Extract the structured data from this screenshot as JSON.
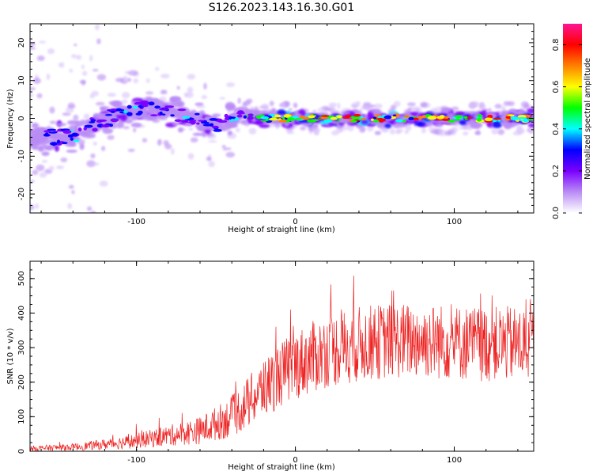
{
  "title": "S126.2023.143.16.30.G01",
  "chart_data": [
    {
      "type": "heatmap",
      "xlabel": "Height of straight line (km)",
      "ylabel": "Frequency (Hz)",
      "xlim": [
        -167,
        150
      ],
      "ylim": [
        -25,
        25
      ],
      "xticks": [
        -100,
        0,
        100
      ],
      "yticks": [
        -20,
        -10,
        0,
        10,
        20
      ],
      "colorbar": {
        "label": "Normalized spectral amplitude",
        "range": [
          0.0,
          0.9
        ],
        "ticks": [
          0.0,
          0.2,
          0.4,
          0.6,
          0.8
        ],
        "colormap": [
          "#ffffff",
          "#b98cf5",
          "#7a00ff",
          "#0000ff",
          "#00ffff",
          "#00ff00",
          "#ffff00",
          "#ff8000",
          "#ff0000",
          "#ff1493"
        ]
      },
      "ridge": [
        {
          "x": -160,
          "freq": -5,
          "amp": 0.3
        },
        {
          "x": -140,
          "freq": -5,
          "amp": 0.4
        },
        {
          "x": -125,
          "freq": -1,
          "amp": 0.35
        },
        {
          "x": -110,
          "freq": 1,
          "amp": 0.45
        },
        {
          "x": -95,
          "freq": 3,
          "amp": 0.45
        },
        {
          "x": -80,
          "freq": 2,
          "amp": 0.4
        },
        {
          "x": -65,
          "freq": 0,
          "amp": 0.35
        },
        {
          "x": -50,
          "freq": -2,
          "amp": 0.35
        },
        {
          "x": -35,
          "freq": 1,
          "amp": 0.4
        },
        {
          "x": -20,
          "freq": 0,
          "amp": 0.6
        },
        {
          "x": 0,
          "freq": 0,
          "amp": 0.75
        },
        {
          "x": 25,
          "freq": 0,
          "amp": 0.85
        },
        {
          "x": 50,
          "freq": 0,
          "amp": 0.8
        },
        {
          "x": 75,
          "freq": 0,
          "amp": 0.8
        },
        {
          "x": 100,
          "freq": 0,
          "amp": 0.8
        },
        {
          "x": 125,
          "freq": 0,
          "amp": 0.85
        },
        {
          "x": 148,
          "freq": 0,
          "amp": 0.8
        }
      ]
    },
    {
      "type": "line",
      "xlabel": "Height of straight line (km)",
      "ylabel": "SNR (10 * v/v)",
      "xlim": [
        -167,
        150
      ],
      "ylim": [
        0,
        550
      ],
      "xticks": [
        -100,
        0,
        100
      ],
      "yticks": [
        0,
        100,
        200,
        300,
        400,
        500
      ],
      "color": "#ee2222",
      "envelope": {
        "x": [
          -167,
          -140,
          -120,
          -100,
          -80,
          -60,
          -50,
          -40,
          -30,
          -20,
          -10,
          0,
          10,
          20,
          30,
          40,
          60,
          80,
          100,
          120,
          150
        ],
        "y": [
          8,
          12,
          20,
          30,
          45,
          60,
          80,
          100,
          140,
          180,
          220,
          250,
          270,
          290,
          300,
          310,
          320,
          320,
          315,
          310,
          310
        ],
        "spread": [
          8,
          10,
          15,
          22,
          30,
          40,
          50,
          60,
          75,
          85,
          95,
          100,
          105,
          105,
          110,
          110,
          110,
          110,
          110,
          110,
          110
        ]
      }
    }
  ]
}
